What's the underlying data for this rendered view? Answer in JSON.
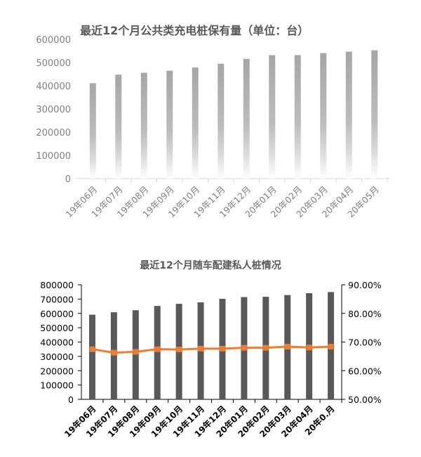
{
  "chart_data": [
    {
      "type": "bar",
      "title": "最近12个月公共类充电桩保有量（单位：台）",
      "categories": [
        "19年06月",
        "19年07月",
        "19年08月",
        "19年09月",
        "19年10月",
        "19年11月",
        "19年12月",
        "20年01月",
        "20年02月",
        "20年03月",
        "20年04月",
        "20年05月"
      ],
      "values": [
        411000,
        448000,
        456000,
        465000,
        479000,
        495000,
        516000,
        532000,
        532000,
        541000,
        547000,
        553000
      ],
      "ylim": [
        0,
        600000
      ],
      "yticks": [
        "0",
        "100000",
        "200000",
        "300000",
        "400000",
        "500000",
        "600000"
      ],
      "bar_color": "#a6a6a6",
      "grid": false
    },
    {
      "type": "bar",
      "title": "最近12个月随车配建私人桩情况",
      "categories": [
        "19年06月",
        "19年07月",
        "19年08月",
        "19年09月",
        "19年10月",
        "19年11月",
        "19年12月",
        "20年01月",
        "20年02月",
        "20年03月",
        "20年04月",
        "20年0.月"
      ],
      "series": [
        {
          "type": "bar",
          "values": [
            591000,
            608000,
            622000,
            652000,
            667000,
            677000,
            702000,
            714000,
            716000,
            728000,
            741000,
            749000
          ],
          "color": "#595959"
        },
        {
          "type": "line",
          "axis": "right",
          "values": [
            0.675,
            0.663,
            0.666,
            0.675,
            0.674,
            0.677,
            0.677,
            0.68,
            0.68,
            0.684,
            0.681,
            0.684
          ],
          "color": "#ed7d31"
        }
      ],
      "ylim": [
        0,
        800000
      ],
      "yticks": [
        "0",
        "100000",
        "200000",
        "300000",
        "400000",
        "500000",
        "600000",
        "700000",
        "800000"
      ],
      "y2lim": [
        0.5,
        0.9
      ],
      "y2ticks": [
        "50.00%",
        "60.00%",
        "70.00%",
        "80.00%",
        "90.00%"
      ],
      "grid": false
    }
  ]
}
